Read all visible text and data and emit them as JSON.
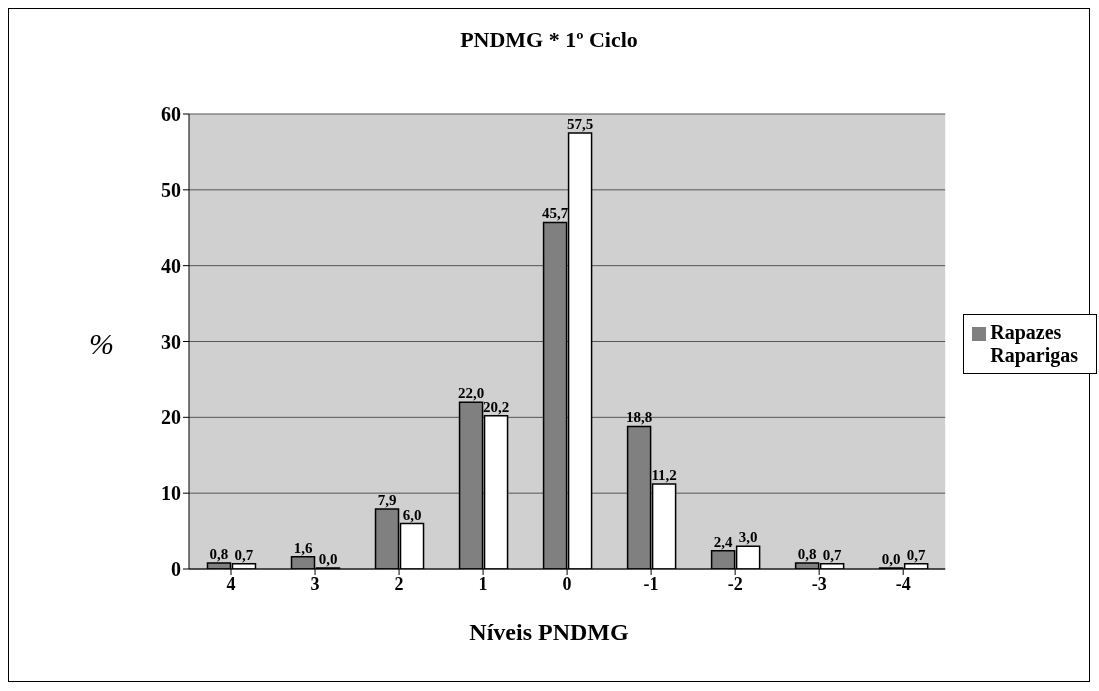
{
  "chart_data": {
    "type": "bar",
    "title": "PNDMG * 1º Ciclo",
    "xlabel": "Níveis PNDMG",
    "ylabel": "%",
    "categories": [
      "4",
      "3",
      "2",
      "1",
      "0",
      "-1",
      "-2",
      "-3",
      "-4"
    ],
    "series": [
      {
        "name": "Rapazes",
        "color": "#808080",
        "values": [
          0.8,
          1.6,
          7.9,
          22.0,
          45.7,
          18.8,
          2.4,
          0.8,
          0.0
        ],
        "value_labels": [
          "0,8",
          "1,6",
          "7,9",
          "22,0",
          "45,7",
          "18,8",
          "2,4",
          "0,8",
          "0,0"
        ]
      },
      {
        "name": "Raparigas",
        "color": "#ffffff",
        "values": [
          0.7,
          0.0,
          6.0,
          20.2,
          57.5,
          11.2,
          3.0,
          0.7,
          0.7
        ],
        "value_labels": [
          "0,7",
          "0,0",
          "6,0",
          "20,2",
          "57,5",
          "11,2",
          "3,0",
          "0,7",
          "0,7"
        ]
      }
    ],
    "ylim": [
      0,
      60
    ],
    "yticks": [
      0,
      10,
      20,
      30,
      40,
      50,
      60
    ],
    "grid": "y",
    "legend": "right"
  }
}
